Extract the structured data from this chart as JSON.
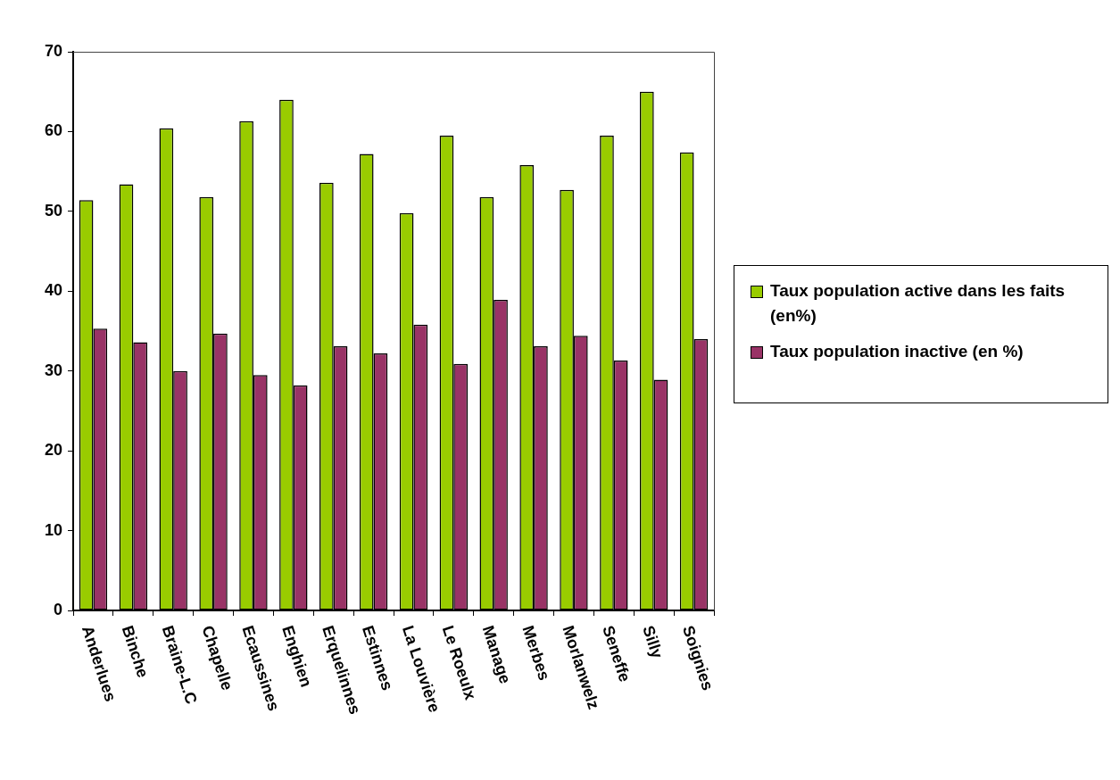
{
  "chart_data": {
    "type": "bar",
    "categories": [
      "Anderlues",
      "Binche",
      "Braine-L.C",
      "Chapelle",
      "Ecaussines",
      "Enghien",
      "Erquelinnes",
      "Estinnes",
      "La Louvière",
      "Le Roeulx",
      "Manage",
      "Merbes",
      "Morlanwelz",
      "Seneffe",
      "Silly",
      "Soignies"
    ],
    "series": [
      {
        "name": "Taux population active dans les faits (en%)",
        "color": "#99cc00",
        "values": [
          51.4,
          53.4,
          60.4,
          51.8,
          61.3,
          64.0,
          53.6,
          57.2,
          49.8,
          59.5,
          51.8,
          55.8,
          52.7,
          59.5,
          65.0,
          57.4
        ]
      },
      {
        "name": "Taux population inactive (en %)",
        "color": "#993366",
        "values": [
          35.3,
          33.6,
          30.0,
          34.7,
          29.5,
          28.2,
          33.1,
          32.2,
          35.8,
          30.9,
          38.9,
          33.1,
          34.4,
          31.3,
          28.9,
          34.0
        ]
      }
    ],
    "ylim": [
      0,
      70
    ],
    "yticks": [
      0,
      10,
      20,
      30,
      40,
      50,
      60,
      70
    ],
    "grid": false,
    "legend": "right"
  }
}
